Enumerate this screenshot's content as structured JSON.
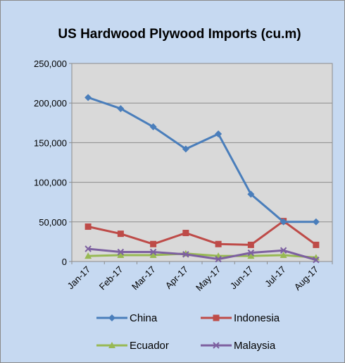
{
  "chart_data": {
    "type": "line",
    "title": "US Hardwood Plywood Imports (cu.m)",
    "xlabel": "",
    "ylabel": "",
    "categories": [
      "Jan-17",
      "Feb-17",
      "Mar-17",
      "Apr-17",
      "May-17",
      "Jun-17",
      "Jul-17",
      "Aug-17"
    ],
    "ylim": [
      0,
      250000
    ],
    "yticks": [
      0,
      50000,
      100000,
      150000,
      200000,
      250000
    ],
    "ytick_labels": [
      "0",
      "50,000",
      "100,000",
      "150,000",
      "200,000",
      "250,000"
    ],
    "grid": "horizontal",
    "legend_position": "bottom",
    "series": [
      {
        "name": "China",
        "color": "#4a7ebb",
        "marker": "diamond",
        "values": [
          207000,
          193000,
          170000,
          142000,
          161000,
          85000,
          50000,
          50000
        ]
      },
      {
        "name": "Indonesia",
        "color": "#be4b48",
        "marker": "square",
        "values": [
          44000,
          35000,
          22000,
          36000,
          22000,
          21000,
          51000,
          21000
        ]
      },
      {
        "name": "Ecuador",
        "color": "#98b954",
        "marker": "triangle",
        "values": [
          7000,
          8000,
          8000,
          10000,
          7000,
          7000,
          8000,
          5000
        ]
      },
      {
        "name": "Malaysia",
        "color": "#7d60a0",
        "marker": "x",
        "values": [
          16000,
          12000,
          12000,
          9000,
          3000,
          11000,
          14000,
          2000
        ]
      }
    ]
  }
}
